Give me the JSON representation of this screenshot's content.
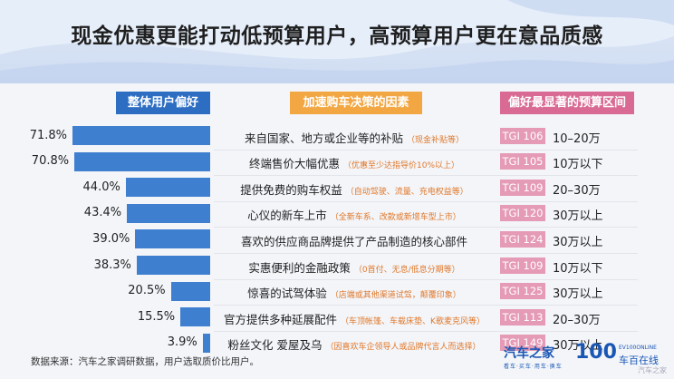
{
  "title": "现金优惠更能打动低预算用户，高预算用户更在意品质感",
  "columns": {
    "left": "整体用户偏好",
    "middle": "加速购车决策的因素",
    "right": "偏好最显著的预算区间"
  },
  "chart_data": {
    "type": "bar",
    "orientation": "horizontal",
    "xlim": [
      0,
      100
    ],
    "rows": [
      {
        "value": 71.8,
        "label": "71.8%",
        "factor": "来自国家、地方或企业等的补贴",
        "note": "（现金补贴等）",
        "tgi": "TGI 106",
        "budget": "10–20万"
      },
      {
        "value": 70.8,
        "label": "70.8%",
        "factor": "终端售价大幅优惠",
        "note": "（优惠至少达指导价10%以上）",
        "tgi": "TGI 105",
        "budget": "10万以下"
      },
      {
        "value": 44.0,
        "label": "44.0%",
        "factor": "提供免费的购车权益",
        "note": "（自动驾驶、流量、充电权益等）",
        "tgi": "TGI 109",
        "budget": "20–30万"
      },
      {
        "value": 43.4,
        "label": "43.4%",
        "factor": "心仪的新车上市",
        "note": "（全新车系、改款或新增车型上市）",
        "tgi": "TGI 120",
        "budget": "30万以上"
      },
      {
        "value": 39.0,
        "label": "39.0%",
        "factor": "喜欢的供应商品牌提供了产品制造的核心部件",
        "note": "",
        "tgi": "TGI 124",
        "budget": "30万以上"
      },
      {
        "value": 38.3,
        "label": "38.3%",
        "factor": "实惠便利的金融政策",
        "note": "（0首付、无息/低息分期等）",
        "tgi": "TGI 109",
        "budget": "10万以下"
      },
      {
        "value": 20.5,
        "label": "20.5%",
        "factor": "惊喜的试驾体验",
        "note": "（店端或其他渠道试驾，颠覆印象）",
        "tgi": "TGI 125",
        "budget": "30万以上"
      },
      {
        "value": 15.5,
        "label": "15.5%",
        "factor": "官方提供多种延展配件",
        "note": "（车顶帐篷、车载床垫、K歌麦克风等）",
        "tgi": "TGI 113",
        "budget": "20–30万"
      },
      {
        "value": 3.9,
        "label": "3.9%",
        "factor": "粉丝文化 爱屋及乌",
        "note": "（因喜欢车企领导人或品牌代言人而选择）",
        "tgi": "TGI 149",
        "budget": "30万以上"
      }
    ]
  },
  "footer": "数据来源：汽车之家调研数据，用户选取质价比用户。",
  "logo_autohome": "汽车之家",
  "logo_autohome_sub": "看车·买车·用车·换车",
  "logo_100_num": "100",
  "logo_100_en": "EV100ONLINE",
  "logo_100_cn": "车百在线",
  "watermark": "汽车之家",
  "colors": {
    "bar": "#3f7fd0",
    "left_header": "#2e6ec2",
    "middle_header": "#f2a742",
    "right_header": "#d86a93",
    "tgi": "#e59ab5",
    "note": "#e0782a"
  }
}
